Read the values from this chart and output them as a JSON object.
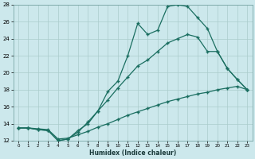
{
  "xlabel": "Humidex (Indice chaleur)",
  "bg_color": "#cce8ec",
  "grid_color": "#aacccc",
  "line_color": "#1a6e60",
  "xlim": [
    0,
    23
  ],
  "ylim": [
    12,
    28
  ],
  "xticks": [
    0,
    1,
    2,
    3,
    4,
    5,
    6,
    7,
    8,
    9,
    10,
    11,
    12,
    13,
    14,
    15,
    16,
    17,
    18,
    19,
    20,
    21,
    22,
    23
  ],
  "yticks": [
    12,
    14,
    16,
    18,
    20,
    22,
    24,
    26,
    28
  ],
  "line1_x": [
    0,
    1,
    2,
    3,
    4,
    5,
    6,
    7,
    8,
    9,
    10,
    11,
    12,
    13,
    14,
    15,
    16,
    17,
    18,
    19,
    20,
    21,
    22,
    23
  ],
  "line1_y": [
    13.5,
    13.5,
    13.3,
    13.2,
    12.0,
    12.2,
    13.2,
    14.0,
    15.5,
    17.8,
    19.0,
    22.0,
    25.8,
    24.5,
    25.0,
    27.8,
    28.0,
    27.8,
    26.5,
    25.2,
    22.5,
    20.5,
    19.2,
    18.0
  ],
  "line2_x": [
    0,
    1,
    2,
    3,
    4,
    5,
    6,
    7,
    8,
    9,
    10,
    11,
    12,
    13,
    14,
    15,
    16,
    17,
    18,
    19,
    20,
    21,
    22,
    23
  ],
  "line2_y": [
    13.5,
    13.5,
    13.3,
    13.2,
    12.0,
    12.2,
    13.0,
    14.2,
    15.5,
    16.8,
    18.2,
    19.5,
    20.8,
    21.5,
    22.5,
    23.5,
    24.0,
    24.5,
    24.2,
    22.5,
    22.5,
    20.5,
    19.2,
    18.0
  ],
  "line3_x": [
    0,
    1,
    2,
    3,
    4,
    5,
    6,
    7,
    8,
    9,
    10,
    11,
    12,
    13,
    14,
    15,
    16,
    17,
    18,
    19,
    20,
    21,
    22,
    23
  ],
  "line3_y": [
    13.5,
    13.5,
    13.4,
    13.3,
    12.2,
    12.3,
    12.7,
    13.1,
    13.6,
    14.0,
    14.5,
    15.0,
    15.4,
    15.8,
    16.2,
    16.6,
    16.9,
    17.2,
    17.5,
    17.7,
    18.0,
    18.2,
    18.4,
    18.0
  ]
}
